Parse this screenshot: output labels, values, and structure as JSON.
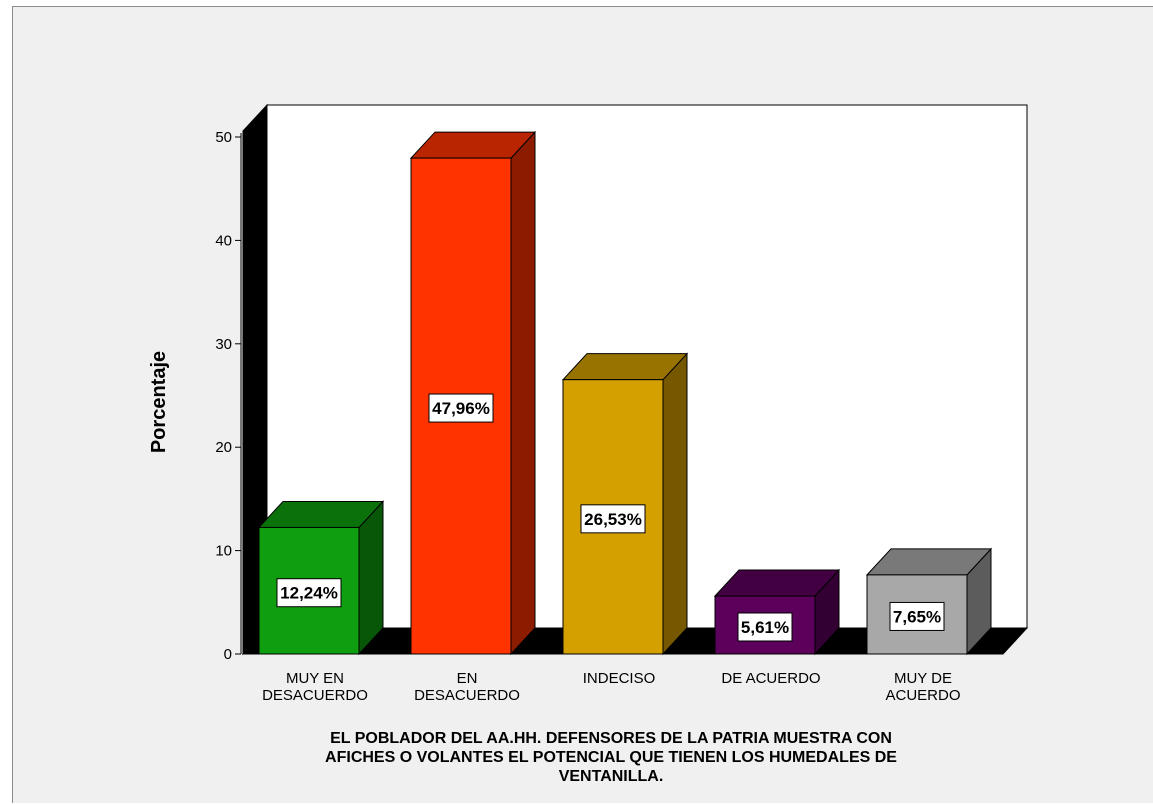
{
  "chart_data": {
    "type": "bar",
    "style": "3d",
    "categories": [
      [
        "MUY EN",
        "DESACUERDO"
      ],
      [
        "EN",
        "DESACUERDO"
      ],
      [
        "INDECISO"
      ],
      [
        "DE ACUERDO"
      ],
      [
        "MUY DE",
        "ACUERDO"
      ]
    ],
    "values": [
      12.24,
      47.96,
      26.53,
      5.61,
      7.65
    ],
    "data_labels": [
      "12,24%",
      "47,96%",
      "26,53%",
      "5,61%",
      "7,65%"
    ],
    "colors": [
      "#0f9e0f",
      "#ff3300",
      "#d4a000",
      "#5c005c",
      "#a8a8a8"
    ],
    "ylabel": "Porcentaje",
    "xlabel_lines": [
      "EL POBLADOR DEL AA.HH. DEFENSORES DE LA PATRIA MUESTRA CON",
      "AFICHES O VOLANTES EL POTENCIAL QUE TIENEN LOS HUMEDALES DE",
      "VENTANILLA."
    ],
    "yticks": [
      0,
      10,
      20,
      30,
      40,
      50
    ],
    "ylim": [
      0,
      50
    ],
    "grid": false,
    "background": "#f0f0f0",
    "plot_background": "#ffffff",
    "wall_color": "#000000"
  }
}
